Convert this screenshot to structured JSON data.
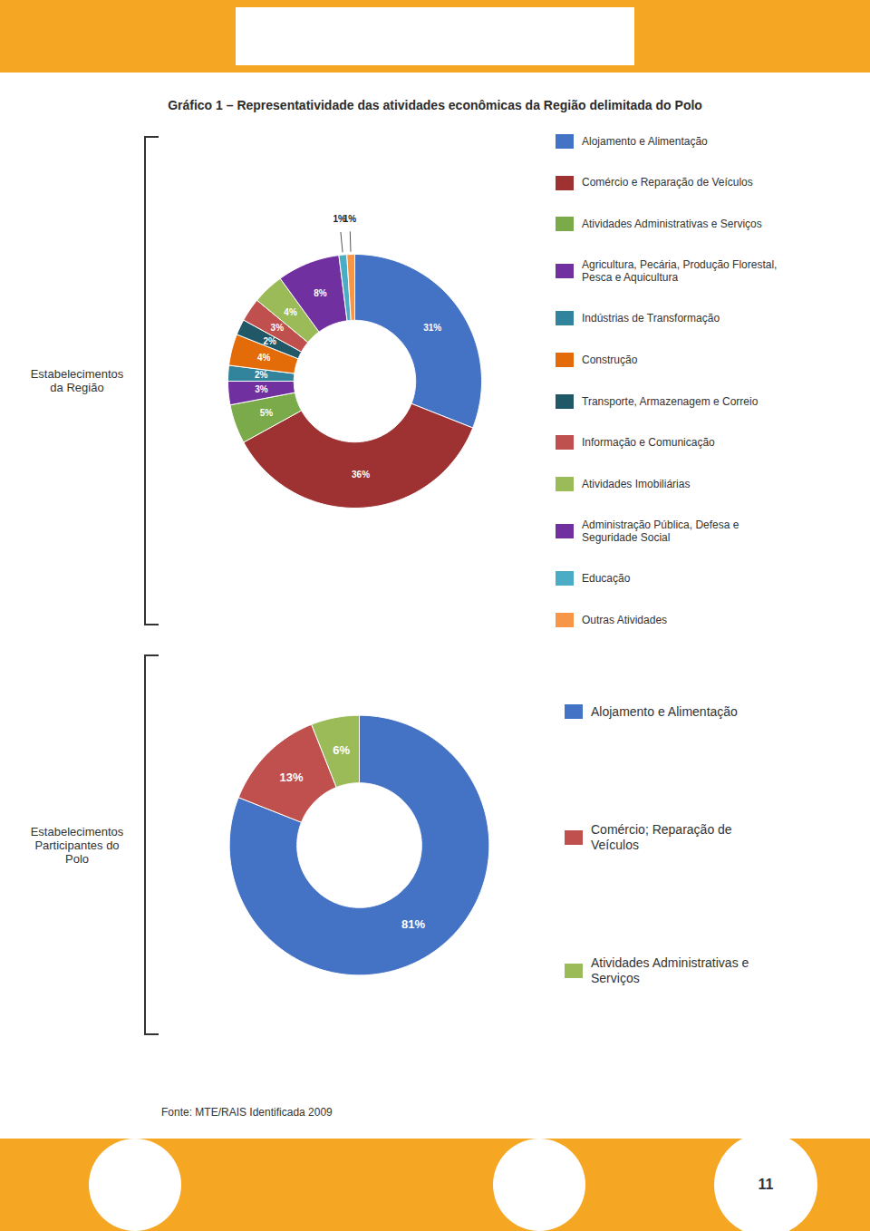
{
  "chart_data": [
    {
      "type": "pie",
      "title": "Gráfico 1 – Representatividade das atividades econômicas da Região delimitada do Polo",
      "subtitle": "Estabelecimentos\nda Região",
      "categories": [
        "Alojamento e Alimentação",
        "Comércio e Reparação de Veículos",
        "Atividades Administrativas e Serviços",
        "Agricultura, Pecária, Produção Florestal,\nPesca e Aquicultura",
        "Indústrias de Transformação",
        "Construção",
        "Transporte, Armazenagem e Correio",
        "Informação e Comunicação",
        "Atividades Imobiliárias",
        "Administração Pública, Defesa e\nSeguridade Social",
        "Educação",
        "Outras Atividades"
      ],
      "values": [
        31,
        36,
        5,
        3,
        2,
        4,
        2,
        3,
        4,
        8,
        1,
        1
      ],
      "value_labels": [
        "31%",
        "36%",
        "5%",
        "3%",
        "2%",
        "4%",
        "2%",
        "3%",
        "4%",
        "8%",
        "1%",
        "1%"
      ],
      "colors": [
        "#4472c4",
        "#9e3232",
        "#7aaa4a",
        "#7030a0",
        "#31849b",
        "#e36c09",
        "#215868",
        "#c0504d",
        "#9bbb59",
        "#7030a0",
        "#4bacc6",
        "#f79646"
      ],
      "data_labels": true,
      "legend": "right"
    },
    {
      "type": "pie",
      "subtitle": "Estabelecimentos\nParticipantes do\nPolo",
      "categories": [
        "Alojamento e Alimentação",
        "Comércio; Reparação de\nVeículos",
        "Atividades Administrativas e\nServiços"
      ],
      "values": [
        81,
        13,
        6
      ],
      "value_labels": [
        "81%",
        "13%",
        "6%"
      ],
      "colors": [
        "#4472c4",
        "#c0504d",
        "#9bbb59"
      ],
      "data_labels": true,
      "legend": "right",
      "annotations": [
        {
          "text": "Fonte: MTE/RAIS Identificada 2009"
        },
        {
          "text": "11"
        }
      ]
    }
  ]
}
